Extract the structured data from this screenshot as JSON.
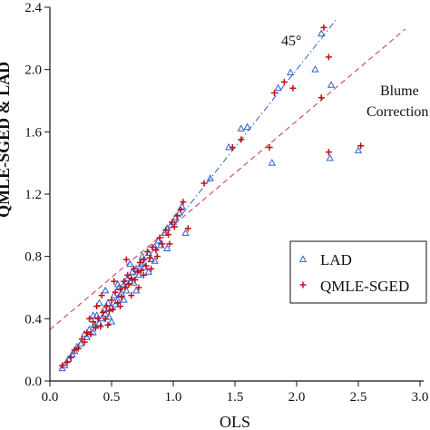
{
  "colors": {
    "lad": "#2f5fd0",
    "qmle": "#c0101a",
    "line45": "#2f5fd0",
    "blume": "#d04e78",
    "axis": "#111111"
  },
  "chart_data": {
    "type": "scatter",
    "xlabel": "OLS",
    "ylabel": "QMLE-SGED & LAD",
    "xlim": [
      0.0,
      3.0
    ],
    "ylim": [
      0.0,
      2.4
    ],
    "x_ticks": [
      "0.0",
      "0.5",
      "1.0",
      "1.5",
      "2.0",
      "2.5",
      "3.0"
    ],
    "y_ticks": [
      "0.0",
      "0.4",
      "0.8",
      "1.2",
      "1.6",
      "2.0",
      "2.4"
    ],
    "grid": false,
    "legend_position": "right",
    "annotations": {
      "line45": "45°",
      "blume_line1": "Blume",
      "blume_line2": "Correction"
    },
    "lines": [
      {
        "name": "45°",
        "style": "dash-dot",
        "slope": 1.0,
        "intercept": 0.0
      },
      {
        "name": "Blume Correction",
        "style": "dashed",
        "slope": 0.67,
        "intercept": 0.33
      }
    ],
    "series": [
      {
        "name": "LAD",
        "marker": "triangle",
        "points": [
          [
            0.1,
            0.08
          ],
          [
            0.12,
            0.1
          ],
          [
            0.15,
            0.14
          ],
          [
            0.18,
            0.17
          ],
          [
            0.2,
            0.19
          ],
          [
            0.22,
            0.22
          ],
          [
            0.25,
            0.24
          ],
          [
            0.28,
            0.3
          ],
          [
            0.3,
            0.28
          ],
          [
            0.32,
            0.33
          ],
          [
            0.35,
            0.31
          ],
          [
            0.36,
            0.36
          ],
          [
            0.38,
            0.42
          ],
          [
            0.4,
            0.37
          ],
          [
            0.42,
            0.4
          ],
          [
            0.44,
            0.46
          ],
          [
            0.45,
            0.43
          ],
          [
            0.47,
            0.5
          ],
          [
            0.48,
            0.41
          ],
          [
            0.5,
            0.47
          ],
          [
            0.52,
            0.55
          ],
          [
            0.53,
            0.49
          ],
          [
            0.55,
            0.52
          ],
          [
            0.56,
            0.6
          ],
          [
            0.58,
            0.56
          ],
          [
            0.6,
            0.62
          ],
          [
            0.62,
            0.58
          ],
          [
            0.63,
            0.66
          ],
          [
            0.65,
            0.64
          ],
          [
            0.67,
            0.7
          ],
          [
            0.68,
            0.63
          ],
          [
            0.7,
            0.72
          ],
          [
            0.72,
            0.68
          ],
          [
            0.74,
            0.75
          ],
          [
            0.75,
            0.8
          ],
          [
            0.77,
            0.73
          ],
          [
            0.8,
            0.82
          ],
          [
            0.82,
            0.78
          ],
          [
            0.85,
            0.86
          ],
          [
            0.88,
            0.9
          ],
          [
            0.9,
            0.87
          ],
          [
            0.93,
            0.95
          ],
          [
            0.95,
            0.98
          ],
          [
            0.98,
            1.0
          ],
          [
            1.0,
            1.02
          ],
          [
            1.02,
            1.05
          ],
          [
            1.05,
            1.08
          ],
          [
            1.07,
            1.12
          ],
          [
            0.45,
            0.58
          ],
          [
            0.55,
            0.62
          ],
          [
            0.6,
            0.52
          ],
          [
            0.65,
            0.75
          ],
          [
            0.7,
            0.58
          ],
          [
            0.4,
            0.5
          ],
          [
            0.5,
            0.38
          ],
          [
            0.35,
            0.42
          ],
          [
            0.8,
            0.7
          ],
          [
            0.85,
            0.77
          ],
          [
            0.95,
            0.85
          ],
          [
            1.1,
            0.95
          ],
          [
            1.3,
            1.3
          ],
          [
            1.45,
            1.5
          ],
          [
            1.55,
            1.62
          ],
          [
            1.6,
            1.63
          ],
          [
            1.8,
            1.4
          ],
          [
            1.85,
            1.88
          ],
          [
            1.95,
            1.98
          ],
          [
            2.15,
            2.0
          ],
          [
            2.2,
            2.23
          ],
          [
            2.28,
            1.9
          ],
          [
            2.27,
            1.43
          ],
          [
            2.5,
            1.48
          ]
        ]
      },
      {
        "name": "QMLE-SGED",
        "marker": "plus",
        "points": [
          [
            0.1,
            0.1
          ],
          [
            0.14,
            0.12
          ],
          [
            0.17,
            0.15
          ],
          [
            0.2,
            0.2
          ],
          [
            0.23,
            0.21
          ],
          [
            0.26,
            0.27
          ],
          [
            0.28,
            0.25
          ],
          [
            0.3,
            0.31
          ],
          [
            0.33,
            0.3
          ],
          [
            0.35,
            0.38
          ],
          [
            0.37,
            0.34
          ],
          [
            0.39,
            0.4
          ],
          [
            0.41,
            0.35
          ],
          [
            0.43,
            0.44
          ],
          [
            0.45,
            0.4
          ],
          [
            0.46,
            0.48
          ],
          [
            0.48,
            0.45
          ],
          [
            0.5,
            0.52
          ],
          [
            0.51,
            0.46
          ],
          [
            0.53,
            0.57
          ],
          [
            0.55,
            0.5
          ],
          [
            0.57,
            0.59
          ],
          [
            0.58,
            0.54
          ],
          [
            0.6,
            0.64
          ],
          [
            0.61,
            0.6
          ],
          [
            0.63,
            0.68
          ],
          [
            0.64,
            0.62
          ],
          [
            0.66,
            0.66
          ],
          [
            0.68,
            0.72
          ],
          [
            0.69,
            0.65
          ],
          [
            0.71,
            0.7
          ],
          [
            0.73,
            0.76
          ],
          [
            0.74,
            0.71
          ],
          [
            0.76,
            0.78
          ],
          [
            0.78,
            0.74
          ],
          [
            0.79,
            0.83
          ],
          [
            0.81,
            0.79
          ],
          [
            0.83,
            0.86
          ],
          [
            0.86,
            0.84
          ],
          [
            0.89,
            0.92
          ],
          [
            0.91,
            0.88
          ],
          [
            0.94,
            0.97
          ],
          [
            0.96,
            0.94
          ],
          [
            0.99,
            1.02
          ],
          [
            1.01,
            0.99
          ],
          [
            1.03,
            1.06
          ],
          [
            1.06,
            1.1
          ],
          [
            1.08,
            1.15
          ],
          [
            0.42,
            0.55
          ],
          [
            0.52,
            0.64
          ],
          [
            0.57,
            0.48
          ],
          [
            0.62,
            0.78
          ],
          [
            0.72,
            0.6
          ],
          [
            0.38,
            0.48
          ],
          [
            0.47,
            0.36
          ],
          [
            0.32,
            0.4
          ],
          [
            0.82,
            0.72
          ],
          [
            0.87,
            0.8
          ],
          [
            0.97,
            0.88
          ],
          [
            1.12,
            0.98
          ],
          [
            0.66,
            0.55
          ],
          [
            0.76,
            0.68
          ],
          [
            1.25,
            1.27
          ],
          [
            1.48,
            1.5
          ],
          [
            1.55,
            1.55
          ],
          [
            1.78,
            1.5
          ],
          [
            1.82,
            1.85
          ],
          [
            1.9,
            1.92
          ],
          [
            1.97,
            1.88
          ],
          [
            2.22,
            2.27
          ],
          [
            2.2,
            1.82
          ],
          [
            2.26,
            2.08
          ],
          [
            2.26,
            1.47
          ],
          [
            2.52,
            1.51
          ]
        ]
      }
    ]
  }
}
